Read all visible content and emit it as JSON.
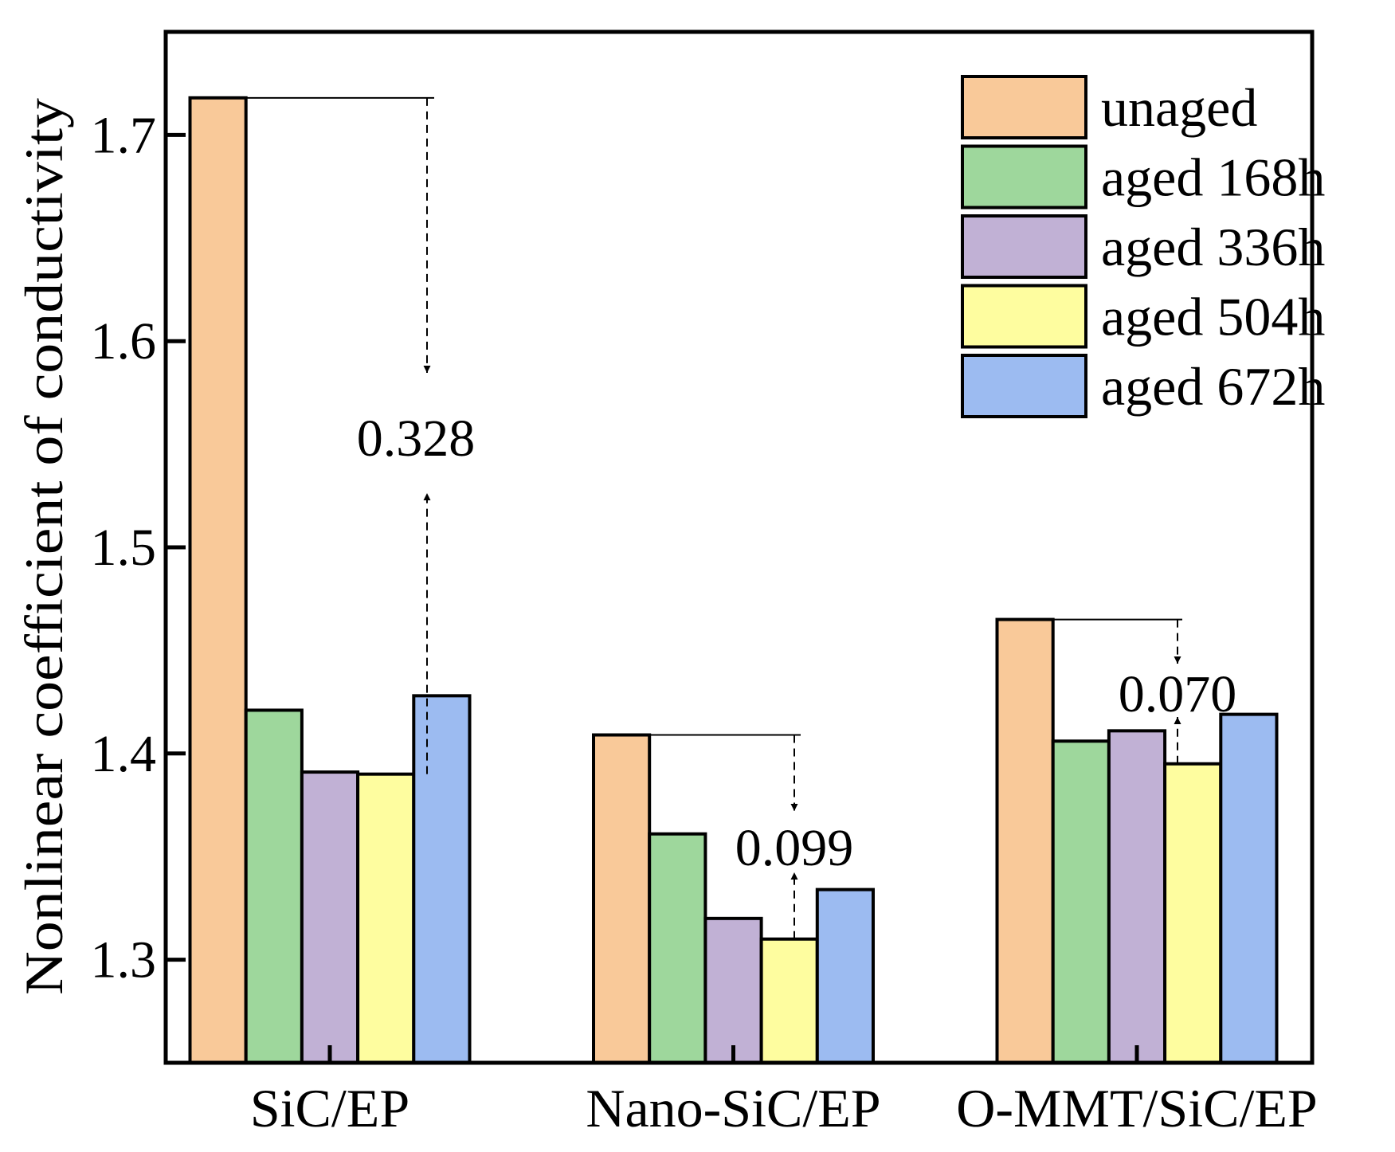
{
  "chart_data": {
    "type": "bar",
    "title": "",
    "xlabel": "",
    "ylabel": "Nonlinear coefficient of conductivity",
    "ylim": [
      1.25,
      1.75
    ],
    "yticks": [
      "1.3",
      "1.4",
      "1.5",
      "1.6",
      "1.7"
    ],
    "ytick_values": [
      1.3,
      1.4,
      1.5,
      1.6,
      1.7
    ],
    "categories": [
      "SiC/EP",
      "Nano-SiC/EP",
      "O-MMT/SiC/EP"
    ],
    "series": [
      {
        "name": "unaged",
        "color": "#F9C999",
        "values": [
          1.718,
          1.409,
          1.465
        ]
      },
      {
        "name": "aged 168h",
        "color": "#9ED79C",
        "values": [
          1.421,
          1.361,
          1.406
        ]
      },
      {
        "name": "aged 336h",
        "color": "#C1B1D5",
        "values": [
          1.391,
          1.32,
          1.411
        ]
      },
      {
        "name": "aged 504h",
        "color": "#FEFD9F",
        "values": [
          1.39,
          1.31,
          1.395
        ]
      },
      {
        "name": "aged 672h",
        "color": "#9CBBF1",
        "values": [
          1.428,
          1.334,
          1.419
        ]
      }
    ],
    "annotations": [
      {
        "category": "SiC/EP",
        "from": 1.718,
        "to": 1.39,
        "label": "0.328"
      },
      {
        "category": "Nano-SiC/EP",
        "from": 1.409,
        "to": 1.31,
        "label": "0.099"
      },
      {
        "category": "O-MMT/SiC/EP",
        "from": 1.465,
        "to": 1.395,
        "label": "0.070"
      }
    ],
    "legend_position": "top-right",
    "grid": false
  }
}
